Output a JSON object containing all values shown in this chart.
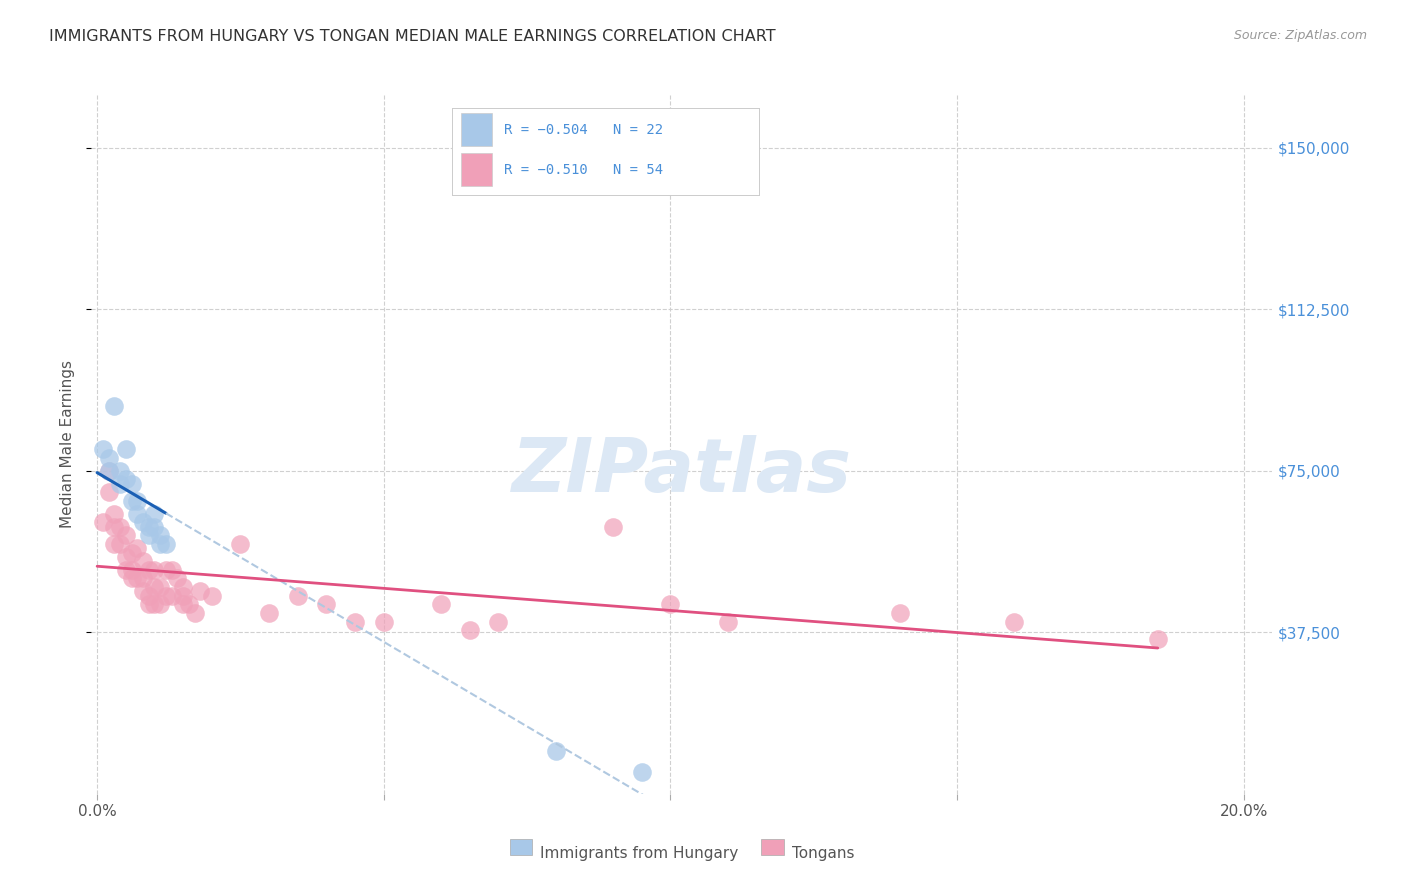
{
  "title": "IMMIGRANTS FROM HUNGARY VS TONGAN MEDIAN MALE EARNINGS CORRELATION CHART",
  "source": "Source: ZipAtlas.com",
  "ylabel": "Median Male Earnings",
  "ytick_labels": [
    "$37,500",
    "$75,000",
    "$112,500",
    "$150,000"
  ],
  "ytick_values": [
    37500,
    75000,
    112500,
    150000
  ],
  "ymin": 0,
  "ymax": 162500,
  "xmin": -0.001,
  "xmax": 0.205,
  "color_hungary": "#a8c8e8",
  "color_tongan": "#f0a0b8",
  "line_color_hungary": "#1a5fb4",
  "line_color_tongan": "#e05080",
  "line_color_hungary_ext": "#b0c8e0",
  "background_color": "#ffffff",
  "grid_color": "#d0d0d0",
  "right_label_color": "#4a90d9",
  "axis_color": "#555555",
  "title_color": "#333333",
  "watermark_color": "#dce8f5",
  "hungary_x": [
    0.001,
    0.002,
    0.002,
    0.003,
    0.004,
    0.004,
    0.005,
    0.005,
    0.006,
    0.006,
    0.007,
    0.007,
    0.008,
    0.009,
    0.009,
    0.01,
    0.01,
    0.011,
    0.011,
    0.012,
    0.08,
    0.095
  ],
  "hungary_y": [
    80000,
    78000,
    75000,
    90000,
    75000,
    72000,
    80000,
    73000,
    72000,
    68000,
    68000,
    65000,
    63000,
    62000,
    60000,
    65000,
    62000,
    60000,
    58000,
    58000,
    10000,
    5000
  ],
  "tongan_x": [
    0.001,
    0.002,
    0.002,
    0.003,
    0.003,
    0.003,
    0.004,
    0.004,
    0.005,
    0.005,
    0.005,
    0.006,
    0.006,
    0.006,
    0.007,
    0.007,
    0.008,
    0.008,
    0.008,
    0.009,
    0.009,
    0.009,
    0.01,
    0.01,
    0.01,
    0.011,
    0.011,
    0.012,
    0.012,
    0.013,
    0.013,
    0.014,
    0.015,
    0.015,
    0.015,
    0.016,
    0.017,
    0.018,
    0.02,
    0.025,
    0.03,
    0.035,
    0.04,
    0.045,
    0.05,
    0.06,
    0.065,
    0.07,
    0.09,
    0.1,
    0.11,
    0.14,
    0.16,
    0.185
  ],
  "tongan_y": [
    63000,
    75000,
    70000,
    65000,
    62000,
    58000,
    62000,
    58000,
    60000,
    55000,
    52000,
    56000,
    52000,
    50000,
    57000,
    50000,
    54000,
    50000,
    47000,
    52000,
    46000,
    44000,
    52000,
    48000,
    44000,
    48000,
    44000,
    52000,
    46000,
    52000,
    46000,
    50000,
    48000,
    46000,
    44000,
    44000,
    42000,
    47000,
    46000,
    58000,
    42000,
    46000,
    44000,
    40000,
    40000,
    44000,
    38000,
    40000,
    62000,
    44000,
    40000,
    42000,
    40000,
    36000
  ],
  "title_fontsize": 11.5,
  "source_fontsize": 9,
  "legend_r1": "R = −0.504   N = 22",
  "legend_r2": "R = −0.510   N = 54",
  "watermark": "ZIPatlas"
}
